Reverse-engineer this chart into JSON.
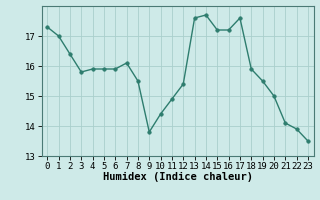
{
  "x": [
    0,
    1,
    2,
    3,
    4,
    5,
    6,
    7,
    8,
    9,
    10,
    11,
    12,
    13,
    14,
    15,
    16,
    17,
    18,
    19,
    20,
    21,
    22,
    23
  ],
  "y": [
    17.3,
    17.0,
    16.4,
    15.8,
    15.9,
    15.9,
    15.9,
    16.1,
    15.5,
    13.8,
    14.4,
    14.9,
    15.4,
    17.6,
    17.7,
    17.2,
    17.2,
    17.6,
    15.9,
    15.5,
    15.0,
    14.1,
    13.9,
    13.5
  ],
  "line_color": "#2e7d6e",
  "marker": "o",
  "markersize": 2.5,
  "linewidth": 1.0,
  "bg_color": "#ceeae8",
  "grid_color": "#aacfcc",
  "xlabel": "Humidex (Indice chaleur)",
  "xlabel_fontsize": 7.5,
  "ylim": [
    13,
    18
  ],
  "yticks": [
    13,
    14,
    15,
    16,
    17
  ],
  "xticks": [
    0,
    1,
    2,
    3,
    4,
    5,
    6,
    7,
    8,
    9,
    10,
    11,
    12,
    13,
    14,
    15,
    16,
    17,
    18,
    19,
    20,
    21,
    22,
    23
  ],
  "tick_fontsize": 6.5,
  "spine_color": "#4a7a75"
}
